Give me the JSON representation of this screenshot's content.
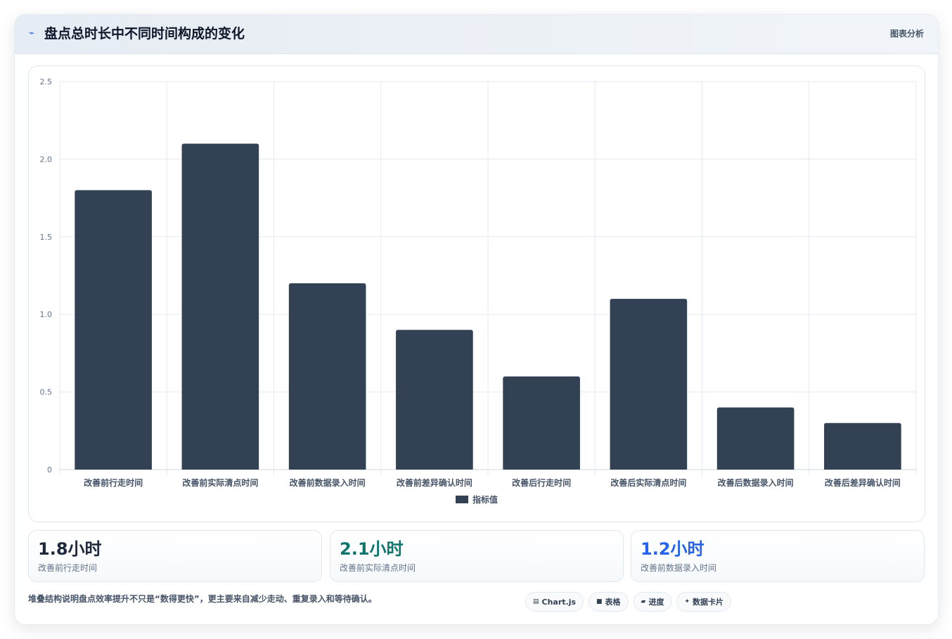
{
  "header": {
    "title": "盘点总时长中不同时间构成的变化",
    "icon": "chart-pulse-icon",
    "right_label": "图表分析"
  },
  "chart_data": {
    "type": "bar",
    "categories": [
      "改善前行走时间",
      "改善前实际清点时间",
      "改善前数据录入时间",
      "改善前差异确认时间",
      "改善后行走时间",
      "改善后实际清点时间",
      "改善后数据录入时间",
      "改善后差异确认时间"
    ],
    "series": [
      {
        "name": "指标值",
        "values": [
          1.8,
          2.1,
          1.2,
          0.9,
          0.6,
          1.1,
          0.4,
          0.3
        ],
        "color": "#334155"
      }
    ],
    "ylim": [
      0,
      2.5
    ],
    "yticks": [
      "0",
      "0.5",
      "1.0",
      "1.5",
      "2.0",
      "2.5"
    ],
    "ytick_values": [
      0,
      0.5,
      1.0,
      1.5,
      2.0,
      2.5
    ],
    "grid": true,
    "legend_position": "bottom"
  },
  "stats": [
    {
      "value": "1.8小时",
      "label": "改善前行走时间",
      "color": "#1e293b"
    },
    {
      "value": "2.1小时",
      "label": "改善前实际清点时间",
      "color": "#0f766e"
    },
    {
      "value": "1.2小时",
      "label": "改善前数据录入时间",
      "color": "#2563eb"
    }
  ],
  "note": "堆叠结构说明盘点效率提升不只是“数得更快”，更主要来自减少走动、重复录入和等待确认。",
  "tags": [
    {
      "icon": "chart-icon",
      "glyph": "▤",
      "label": "Chart.js"
    },
    {
      "icon": "table-icon",
      "glyph": "■",
      "label": "表格"
    },
    {
      "icon": "progress-icon",
      "glyph": "▰",
      "label": "进度"
    },
    {
      "icon": "sparkle-icon",
      "glyph": "✦",
      "label": "数据卡片"
    }
  ]
}
